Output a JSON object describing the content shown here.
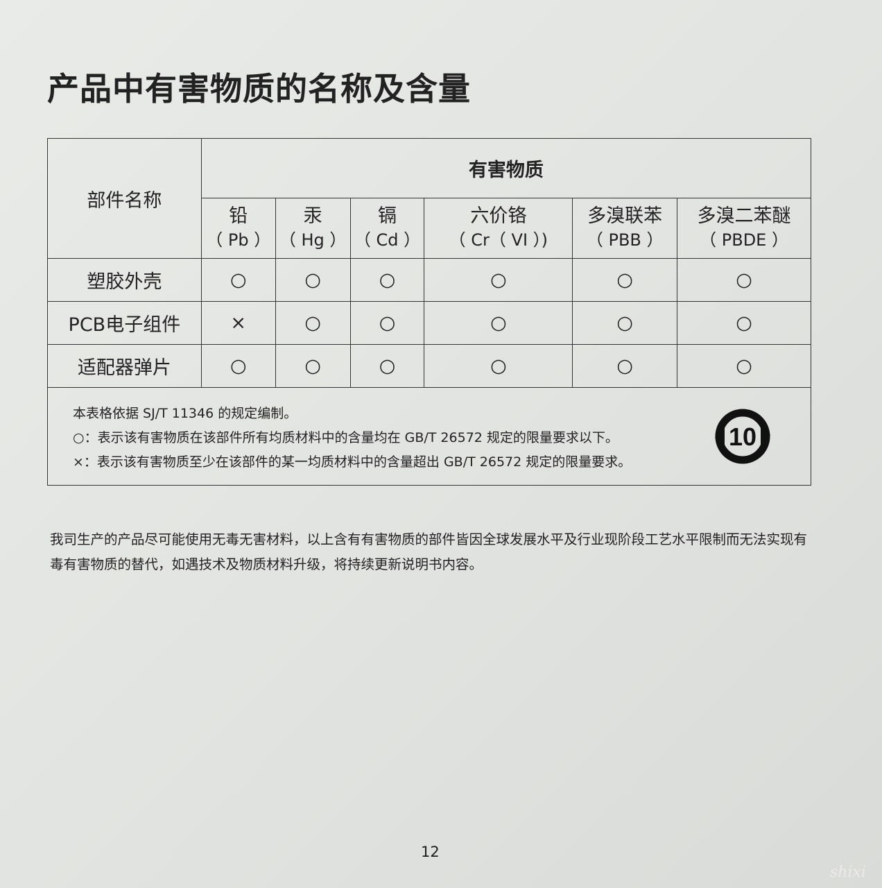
{
  "title": "产品中有害物质的名称及含量",
  "table": {
    "part_header": "部件名称",
    "group_header": "有害物质",
    "substances": [
      {
        "name": "铅",
        "symbol": "（ Pb ）"
      },
      {
        "name": "汞",
        "symbol": "（ Hg ）"
      },
      {
        "name": "镉",
        "symbol": "（ Cd ）"
      },
      {
        "name": "六价铬",
        "symbol": "（ Cr（ VI ）)"
      },
      {
        "name": "多溴联苯",
        "symbol": "（ PBB ）"
      },
      {
        "name": "多溴二苯醚",
        "symbol": "（ PBDE ）"
      }
    ],
    "rows": [
      {
        "part": "塑胶外壳",
        "values": [
          "○",
          "○",
          "○",
          "○",
          "○",
          "○"
        ]
      },
      {
        "part": "PCB电子组件",
        "values": [
          "×",
          "○",
          "○",
          "○",
          "○",
          "○"
        ]
      },
      {
        "part": "适配器弹片",
        "values": [
          "○",
          "○",
          "○",
          "○",
          "○",
          "○"
        ]
      }
    ],
    "notes": [
      "本表格依据 SJ/T 11346 的规定编制。",
      "○：表示该有害物质在该部件所有均质材料中的含量均在 GB/T 26572 规定的限量要求以下。",
      "×：表示该有害物质至少在该部件的某一均质材料中的含量超出 GB/T 26572 规定的限量要求。"
    ],
    "epup_logo": "10"
  },
  "paragraph": "我司生产的产品尽可能使用无毒无害材料，以上含有有害物质的部件皆因全球发展水平及行业现阶段工艺水平限制而无法实现有毒有害物质的替代，如遇技术及物质材料升级，将持续更新说明书内容。",
  "page_number": "12",
  "watermark": "shixi"
}
